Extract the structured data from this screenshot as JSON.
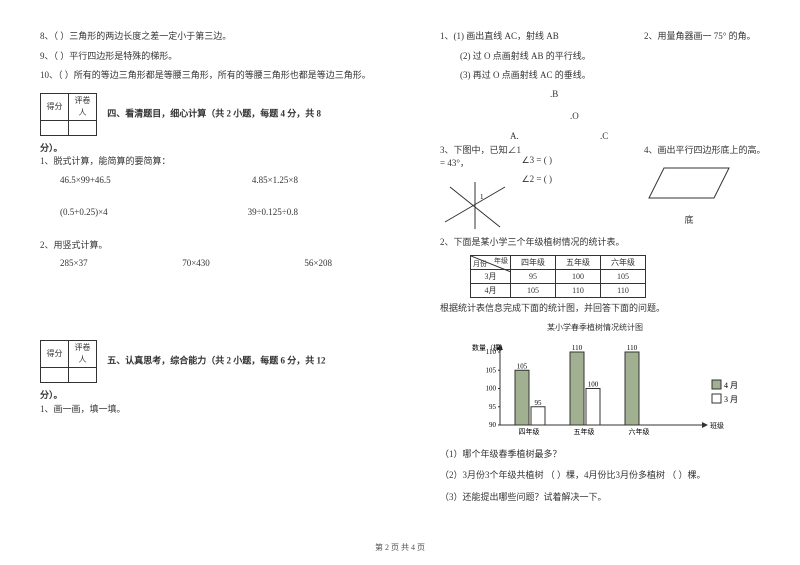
{
  "left": {
    "q8": "8、（  ）三角形的两边长度之差一定小于第三边。",
    "q9": "9、（  ）平行四边形是特殊的梯形。",
    "q10": "10、（  ）所有的等边三角形都是等腰三角形，所有的等腰三角形也都是等边三角形。",
    "score_header1": "得分",
    "score_header2": "评卷人",
    "section4_title": "四、看清题目，细心计算（共 2 小题，每题 4 分，共 8",
    "section4_suffix": "分）。",
    "p1_title": "1、脱式计算，能简算的要简算：",
    "p1_a": "46.5×99+46.5",
    "p1_b": "4.85×1.25×8",
    "p1_c": "(0.5+0.25)×4",
    "p1_d": "39÷0.125÷0.8",
    "p2_title": "2、用竖式计算。",
    "p2_a": "285×37",
    "p2_b": "70×430",
    "p2_c": "56×208",
    "section5_title": "五、认真思考，综合能力（共 2 小题，每题 6 分，共 12",
    "section5_suffix": "分）。",
    "p5_1": "1、画一画，填一填。"
  },
  "right": {
    "q1_1": "1、(1) 画出直线 AC，射线 AB",
    "q1_2": "(2) 过 O 点画射线 AB 的平行线。",
    "q1_3": "(3) 再过 O 点画射线 AC 的垂线。",
    "q2": "2、用量角器画一 75° 的角。",
    "labelB": ".B",
    "labelO": ".O",
    "labelA": "A.",
    "labelC": ".C",
    "q3": "3、下图中，已知∠1 = 43°，",
    "q3_a": "∠3 = (       )",
    "q3_b": "∠2 = (       )",
    "q4": "4、画出平行四边形底上的高。",
    "q4_base": "底",
    "p2_intro": "2、下面是某小学三个年级植树情况的统计表。",
    "table": {
      "diag_top": "年级",
      "diag_bottom": "月份",
      "cols": [
        "四年级",
        "五年级",
        "六年级"
      ],
      "rows": [
        {
          "label": "3月",
          "values": [
            95,
            100,
            105
          ]
        },
        {
          "label": "4月",
          "values": [
            105,
            110,
            110
          ]
        }
      ]
    },
    "chart_note": "根据统计表信息完成下面的统计图，并回答下面的问题。",
    "chart_title": "某小学春季植树情况统计图",
    "chart": {
      "ylabel": "数量（棵）",
      "yticks": [
        90,
        95,
        100,
        105,
        110
      ],
      "categories": [
        "四年级",
        "五年级",
        "六年级"
      ],
      "xlabel": "班级",
      "series": [
        {
          "name": "4 月",
          "fill": "#a0b090",
          "values": [
            105,
            110,
            110
          ]
        },
        {
          "name": "3 月",
          "fill": "#ffffff",
          "values": [
            95,
            100,
            null
          ]
        }
      ],
      "bar_labels": {
        "g1": [
          "105",
          "95"
        ],
        "g2": [
          "110",
          "100"
        ],
        "g3": [
          "110"
        ]
      },
      "colors": {
        "axis": "#333",
        "grid": "#999",
        "bar_border": "#333"
      }
    },
    "subq1": "（1）哪个年级春季植树最多？",
    "subq2": "（2）3月份3个年级共植树  （     ）棵，4月份比3月份多植树  （     ）棵。",
    "subq3": "（3）还能提出哪些问题？试着解决一下。"
  },
  "footer": "第 2 页 共 4 页"
}
